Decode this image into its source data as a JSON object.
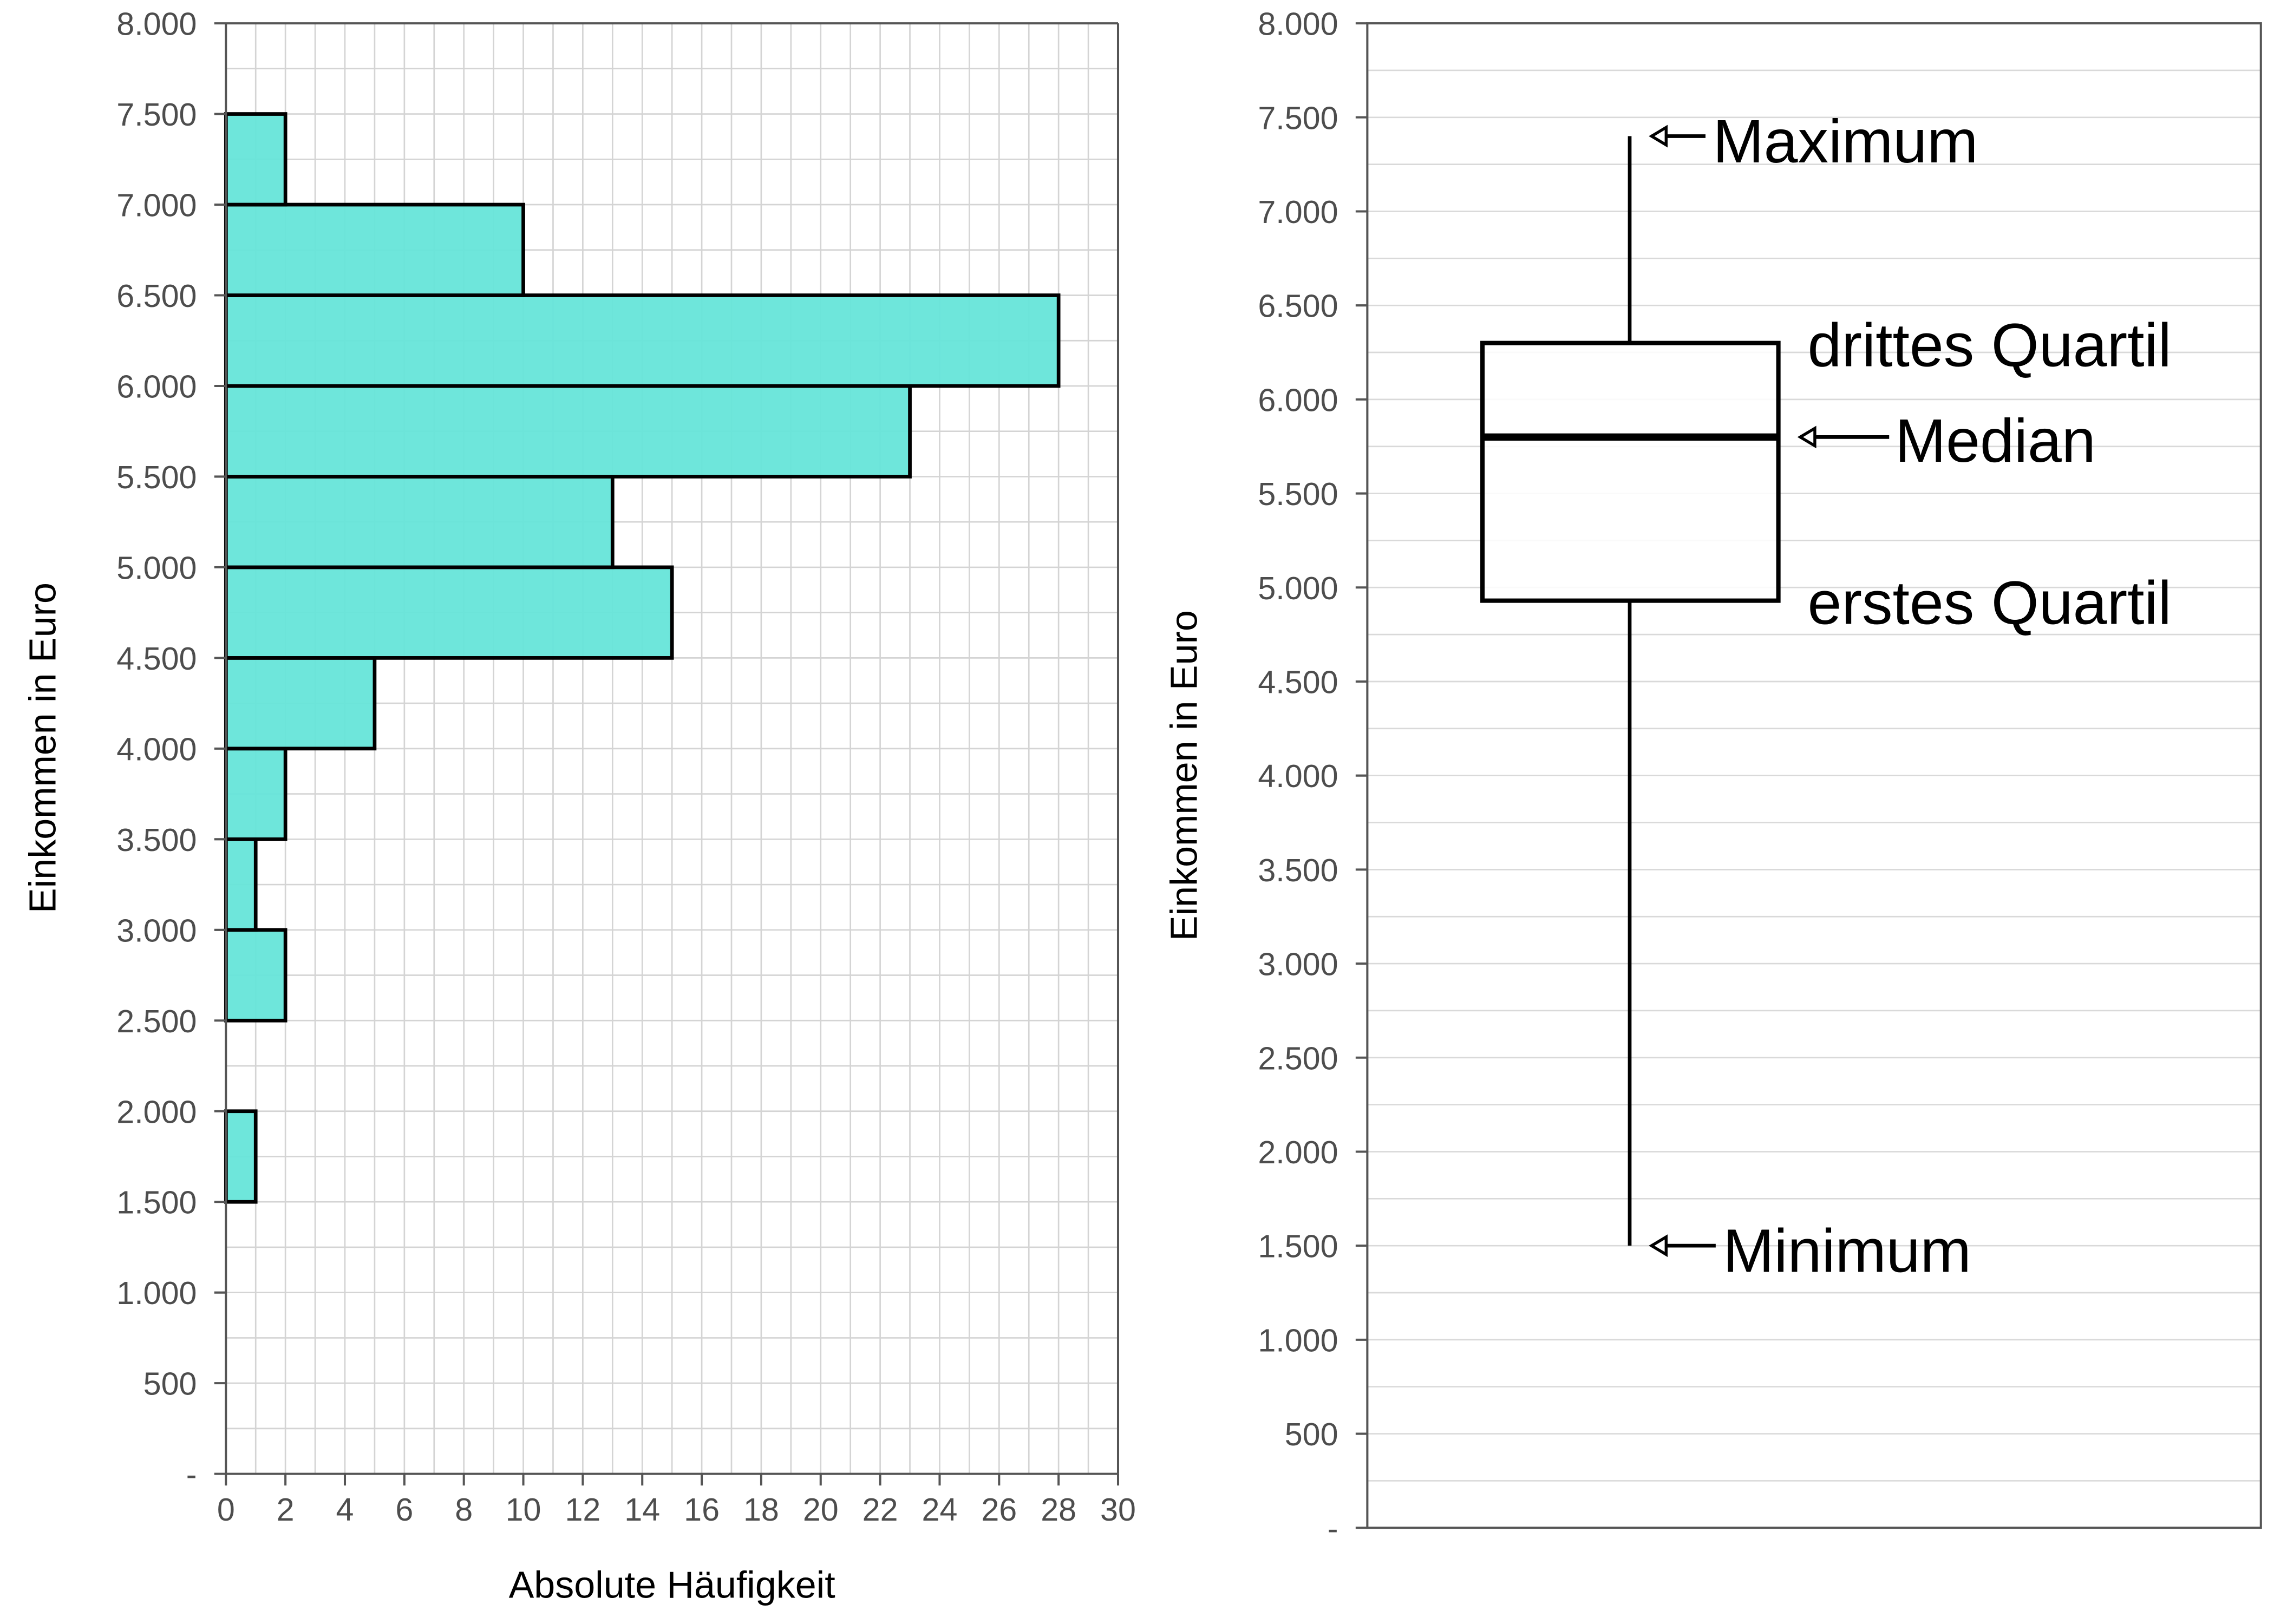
{
  "chart_data": [
    {
      "type": "bar",
      "orientation": "horizontal",
      "histogram": true,
      "xlabel": "Absolute Häufigkeit",
      "ylabel": "Einkommen in Euro",
      "xlim": [
        0,
        30
      ],
      "ylim": [
        0,
        8000
      ],
      "grid": true,
      "x_ticks": [
        "0",
        "2",
        "4",
        "6",
        "8",
        "10",
        "12",
        "14",
        "16",
        "18",
        "20",
        "22",
        "24",
        "26",
        "28",
        "30"
      ],
      "y_ticks": [
        "-",
        "500",
        "1.000",
        "1.500",
        "2.000",
        "2.500",
        "3.000",
        "3.500",
        "4.000",
        "4.500",
        "5.000",
        "5.500",
        "6.000",
        "6.500",
        "7.000",
        "7.500",
        "8.000"
      ],
      "bar_color": "#66e5d9",
      "bins": [
        {
          "from": 1500,
          "to": 2000,
          "value": 1
        },
        {
          "from": 2000,
          "to": 2500,
          "value": 0
        },
        {
          "from": 2500,
          "to": 3000,
          "value": 2
        },
        {
          "from": 3000,
          "to": 3500,
          "value": 1
        },
        {
          "from": 3500,
          "to": 4000,
          "value": 2
        },
        {
          "from": 4000,
          "to": 4500,
          "value": 5
        },
        {
          "from": 4500,
          "to": 5000,
          "value": 15
        },
        {
          "from": 5000,
          "to": 5500,
          "value": 13
        },
        {
          "from": 5500,
          "to": 6000,
          "value": 23
        },
        {
          "from": 6000,
          "to": 6500,
          "value": 28
        },
        {
          "from": 6500,
          "to": 7000,
          "value": 10
        },
        {
          "from": 7000,
          "to": 7500,
          "value": 2
        }
      ]
    },
    {
      "type": "boxplot",
      "ylabel": "Einkommen in Euro",
      "ylim": [
        0,
        8000
      ],
      "grid": true,
      "y_ticks": [
        "-",
        "500",
        "1.000",
        "1.500",
        "2.000",
        "2.500",
        "3.000",
        "3.500",
        "4.000",
        "4.500",
        "5.000",
        "5.500",
        "6.000",
        "6.500",
        "7.000",
        "7.500",
        "8.000"
      ],
      "min": 1500,
      "q1": 4930,
      "median": 5800,
      "q3": 6300,
      "max": 7400,
      "annotations": {
        "max": "Maximum",
        "q3": "drittes Quartil",
        "median": "Median",
        "q1": "erstes Quartil",
        "min": "Minimum"
      }
    }
  ]
}
